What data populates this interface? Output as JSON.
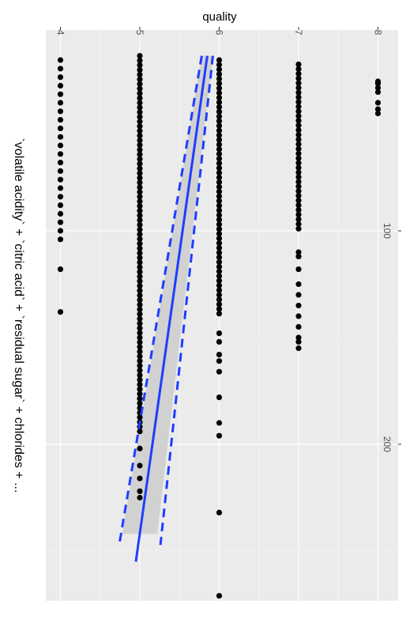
{
  "chart_data": {
    "type": "scatter",
    "orientation": "rotated-90-clockwise",
    "ylabel": "quality",
    "xlabel": "`volatile acidity` + `citric acid` + `residual sugar` + chlorides + ...",
    "y_ticks": [
      4,
      5,
      6,
      7,
      8
    ],
    "x_ticks": [
      100,
      200
    ],
    "ylim": [
      3.8,
      8.2
    ],
    "xlim": [
      0,
      262
    ],
    "grid": true,
    "panel_color": "#ebebeb",
    "point_color": "#000000",
    "fit_color": "#1f3dff",
    "ci_color": "#c8c8c8",
    "series": [
      {
        "quality": 8,
        "x": [
          30,
          31,
          33,
          35,
          40,
          43,
          45
        ]
      },
      {
        "quality": 7,
        "x": [
          22,
          100,
          110,
          112,
          118,
          125,
          130,
          135,
          140,
          145,
          150,
          152,
          155
        ]
      },
      {
        "quality": 6,
        "x": [
          20,
          140,
          148,
          152,
          158,
          161,
          166,
          178,
          190,
          196,
          232,
          271
        ]
      },
      {
        "quality": 5,
        "x": [
          18,
          195,
          202,
          210,
          216,
          222,
          225
        ]
      },
      {
        "quality": 4,
        "x": [
          20,
          24,
          28,
          32,
          36,
          40,
          44,
          48,
          52,
          56,
          60,
          64,
          68,
          72,
          76,
          80,
          84,
          88,
          92,
          96,
          100,
          104,
          118,
          138
        ]
      }
    ],
    "fit": {
      "x": [
        18,
        255
      ],
      "y": [
        5.85,
        4.95
      ]
    },
    "ci_band": {
      "x": [
        18,
        242
      ],
      "lower": [
        5.78,
        4.78
      ],
      "upper": [
        5.92,
        5.22
      ]
    }
  }
}
